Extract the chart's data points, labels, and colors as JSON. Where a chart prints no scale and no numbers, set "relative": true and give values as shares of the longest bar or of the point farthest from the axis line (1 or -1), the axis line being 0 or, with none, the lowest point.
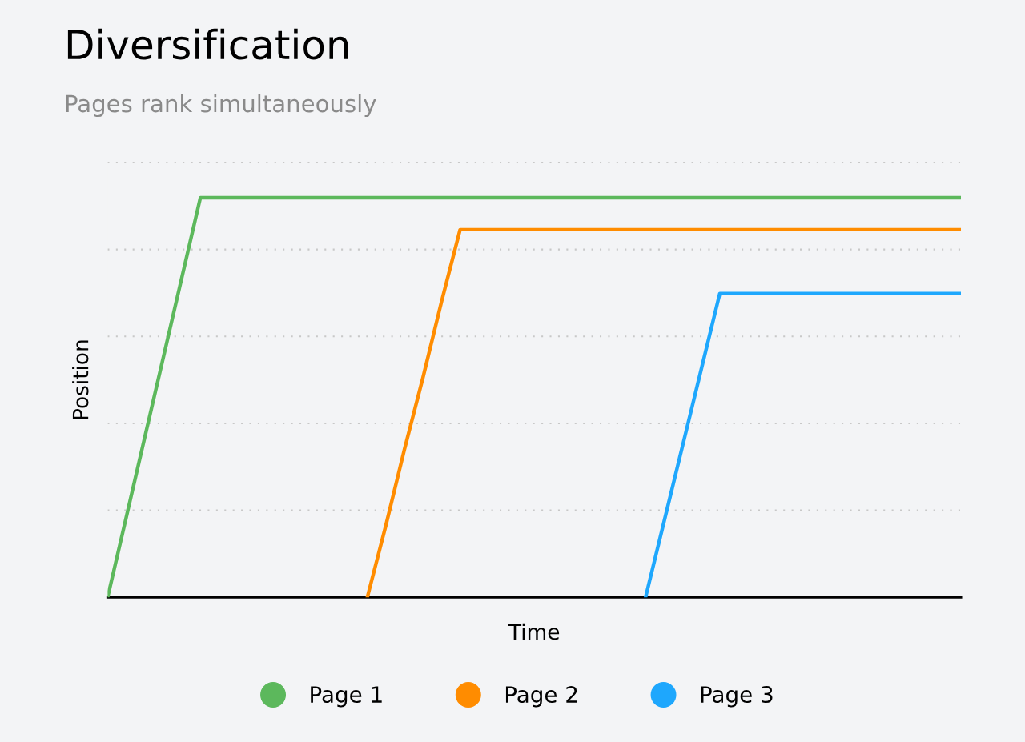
{
  "chart_data": {
    "type": "line",
    "title": "Diversification",
    "subtitle": "Pages rank simultaneously",
    "xlabel": "Time",
    "ylabel": "Position",
    "relative": true,
    "grid": "y",
    "legend": "bottom",
    "line_style": "solid",
    "categories": [
      null,
      null,
      null,
      null,
      null,
      null,
      null,
      null,
      null,
      null,
      null,
      null,
      null,
      null,
      null,
      null,
      null,
      null,
      null,
      null,
      null,
      null,
      null,
      null,
      null,
      null,
      null,
      null,
      null,
      null,
      null,
      null,
      null,
      null,
      null,
      null,
      null,
      null,
      null,
      null,
      null,
      null,
      null,
      null,
      null,
      null,
      null
    ],
    "series": [
      {
        "name": "Page 1",
        "color": "#5cb85c",
        "values": [
          0,
          0.2,
          0.4,
          0.6,
          0.8,
          1,
          1,
          1,
          1,
          1,
          1,
          1,
          1,
          1,
          1,
          1,
          1,
          1,
          1,
          1,
          1,
          1,
          1,
          1,
          1,
          1,
          1,
          1,
          1,
          1,
          1,
          1,
          1,
          1,
          1,
          1,
          1,
          1,
          1,
          1,
          1,
          1,
          1,
          1,
          1,
          1,
          1
        ]
      },
      {
        "name": "Page 2",
        "color": "#ff8c00",
        "values": [
          null,
          null,
          null,
          null,
          null,
          null,
          null,
          null,
          null,
          null,
          null,
          null,
          null,
          null,
          0,
          0.18,
          0.37,
          0.55,
          0.74,
          0.92,
          0.92,
          0.92,
          0.92,
          0.92,
          0.92,
          0.92,
          0.92,
          0.92,
          0.92,
          0.92,
          0.92,
          0.92,
          0.92,
          0.92,
          0.92,
          0.92,
          0.92,
          0.92,
          0.92,
          0.92,
          0.92,
          0.92,
          0.92,
          0.92,
          0.92,
          0.92,
          0.92
        ]
      },
      {
        "name": "Page 3",
        "color": "#1ea7fd",
        "values": [
          null,
          null,
          null,
          null,
          null,
          null,
          null,
          null,
          null,
          null,
          null,
          null,
          null,
          null,
          null,
          null,
          null,
          null,
          null,
          null,
          null,
          null,
          null,
          null,
          null,
          null,
          null,
          null,
          null,
          0,
          0.19,
          0.38,
          0.57,
          0.76,
          0.76,
          0.76,
          0.76,
          0.76,
          0.76,
          0.76,
          0.76,
          0.76,
          0.76,
          0.76,
          0.76,
          0.76,
          0.76
        ]
      }
    ]
  }
}
